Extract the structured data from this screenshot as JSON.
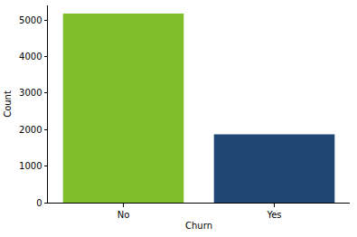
{
  "chart_data": {
    "type": "bar",
    "x_label": "Churn",
    "y_label": "Count",
    "categories": [
      "No",
      "Yes"
    ],
    "values": [
      5174,
      1869
    ],
    "colors": [
      "#7fbf2b",
      "#1f4675"
    ],
    "ylim": [
      0,
      5400
    ],
    "yticks": [
      0,
      1000,
      2000,
      3000,
      4000,
      5000
    ],
    "grid": false
  }
}
